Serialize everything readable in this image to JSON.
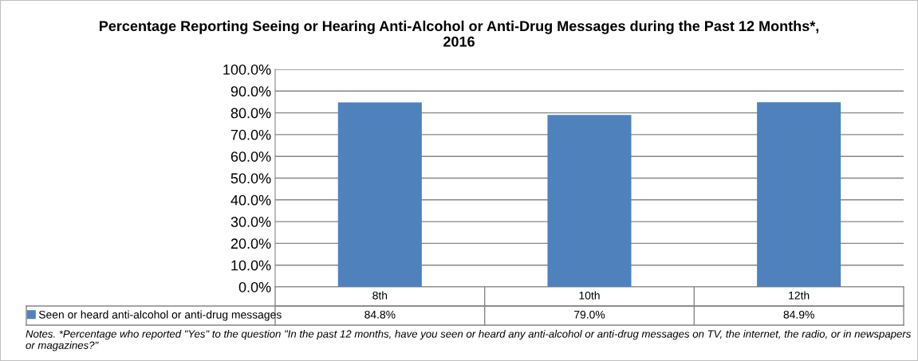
{
  "chart_data": {
    "type": "bar",
    "title": "Percentage Reporting Seeing or Hearing Anti-Alcohol or Anti-Drug Messages during the Past 12 Months*,\n2016",
    "categories": [
      "8th",
      "10th",
      "12th"
    ],
    "series": [
      {
        "name": "Seen or heard anti-alcohol or anti-drug messages",
        "color": "#4f81bd",
        "values": [
          84.8,
          79.0,
          84.9
        ],
        "value_labels": [
          "84.8%",
          "79.0%",
          "84.9%"
        ]
      }
    ],
    "ylim": [
      0,
      100
    ],
    "yticks": [
      {
        "value": 0,
        "label": "0.0%"
      },
      {
        "value": 10,
        "label": "10.0%"
      },
      {
        "value": 20,
        "label": "20.0%"
      },
      {
        "value": 30,
        "label": "30.0%"
      },
      {
        "value": 40,
        "label": "40.0%"
      },
      {
        "value": 50,
        "label": "50.0%"
      },
      {
        "value": 60,
        "label": "60.0%"
      },
      {
        "value": 70,
        "label": "70.0%"
      },
      {
        "value": 80,
        "label": "80.0%"
      },
      {
        "value": 90,
        "label": "90.0%"
      },
      {
        "value": 100,
        "label": "100.0%"
      }
    ],
    "grid": "y",
    "legend": "bottom",
    "annotations": [
      "Notes. *Percentage who reported \"Yes\" to the question \"In the past 12 months, have you seen or heard any anti-alcohol or anti-drug messages on TV, the internet, the radio, or in newspapers or magazines?\""
    ]
  }
}
